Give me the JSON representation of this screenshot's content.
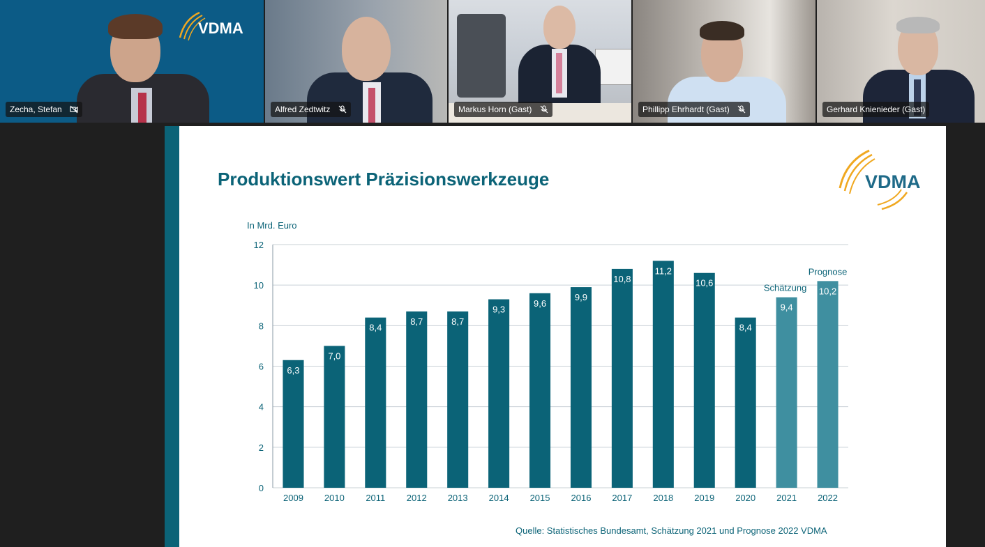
{
  "participants": [
    {
      "name": "Zecha, Stefan",
      "mic": "muted-video-icon",
      "active": true,
      "logo": "VDMA"
    },
    {
      "name": "Alfred Zedtwitz",
      "mic": "mic-off-icon"
    },
    {
      "name": "Markus Horn (Gast)",
      "mic": "mic-off-icon"
    },
    {
      "name": "Phillipp Ehrhardt (Gast)",
      "mic": "mic-off-icon"
    },
    {
      "name": "Gerhard Knienieder (Gast)"
    }
  ],
  "slide": {
    "title": "Produktionswert Präzisionswerkzeuge",
    "logo": "VDMA",
    "source": "Quelle: Statistisches Bundesamt, Schätzung 2021 und Prognose 2022 VDMA",
    "colors": {
      "primary": "#0b6377",
      "estimate": "#3f8fa0",
      "grid": "#c9d0d6"
    }
  },
  "chart_data": {
    "type": "bar",
    "title": "",
    "ylabel": "In Mrd. Euro",
    "ylim": [
      0,
      12
    ],
    "yticks": [
      "0",
      "2",
      "4",
      "6",
      "8",
      "10",
      "12"
    ],
    "grid": true,
    "categories": [
      "2009",
      "2010",
      "2011",
      "2012",
      "2013",
      "2014",
      "2015",
      "2016",
      "2017",
      "2018",
      "2019",
      "2020",
      "2021",
      "2022"
    ],
    "values": [
      6.3,
      7.0,
      8.4,
      8.7,
      8.7,
      9.3,
      9.6,
      9.9,
      10.8,
      11.2,
      10.6,
      8.4,
      9.4,
      10.2
    ],
    "value_labels": [
      "6,3",
      "7,0",
      "8,4",
      "8,7",
      "8,7",
      "9,3",
      "9,6",
      "9,9",
      "10,8",
      "11,2",
      "10,6",
      "8,4",
      "9,4",
      "10,2"
    ],
    "annotations": [
      {
        "category": "2021",
        "text": "Schätzung"
      },
      {
        "category": "2022",
        "text": "Prognose"
      }
    ],
    "highlighted_categories": [
      "2021",
      "2022"
    ]
  }
}
